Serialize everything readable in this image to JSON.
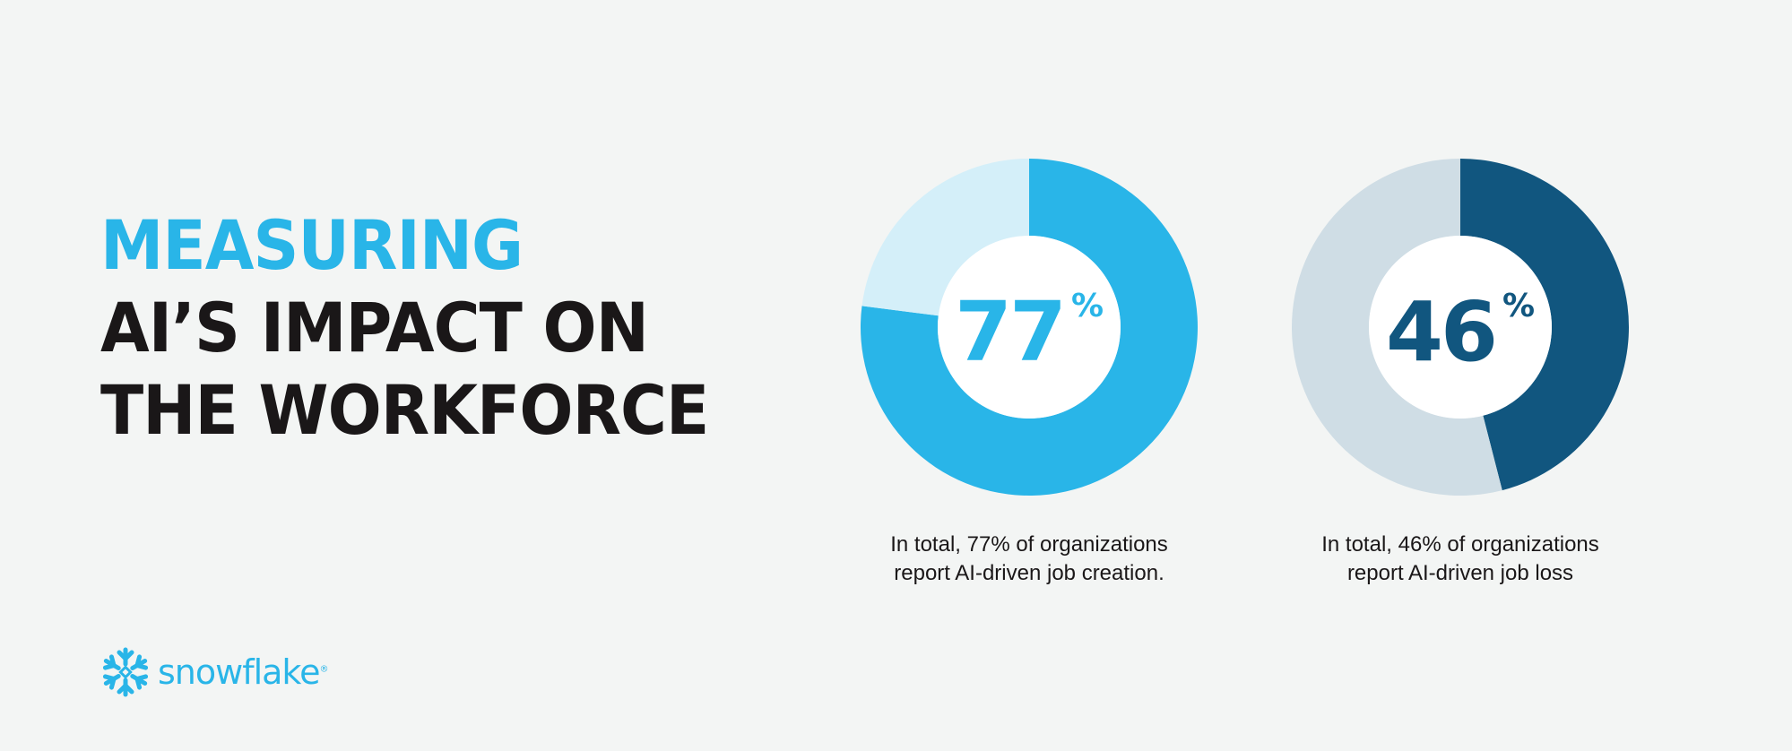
{
  "title": {
    "line1": "MEASURING",
    "line2": "AI’S IMPACT ON",
    "line3": "THE WORKFORCE"
  },
  "chart_data": [
    {
      "type": "pie",
      "variant": "donut",
      "values": [
        77,
        23
      ],
      "label": "77",
      "unit": "%",
      "colors": [
        "#29b5e8",
        "#d4eff9"
      ],
      "label_color": "#29b5e8",
      "caption_lines": [
        "In total, 77% of organizations",
        "report AI-driven job creation."
      ]
    },
    {
      "type": "pie",
      "variant": "donut",
      "values": [
        46,
        54
      ],
      "label": "46",
      "unit": "%",
      "colors": [
        "#11567f",
        "#cfdde5"
      ],
      "label_color": "#11567f",
      "caption_lines": [
        "In total, 46% of organizations",
        "report AI-driven job loss"
      ]
    }
  ],
  "logo": {
    "text": "snowflake",
    "mark": "®",
    "icon": "snowflake-icon",
    "color": "#29b5e8"
  }
}
